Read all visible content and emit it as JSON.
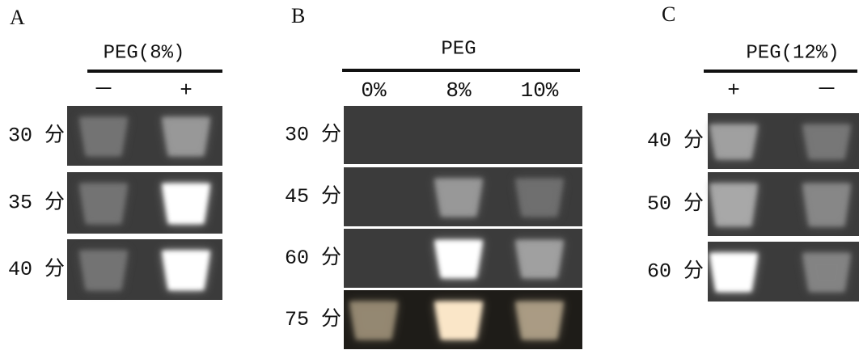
{
  "panels": [
    {
      "label": "A",
      "header": "PEG(8%)",
      "columns": [
        "－",
        "+"
      ],
      "rows": [
        "30 分",
        "35 分",
        "40 分"
      ]
    },
    {
      "label": "B",
      "header": "PEG",
      "columns": [
        "0%",
        "8%",
        "10%"
      ],
      "rows": [
        "30 分",
        "45 分",
        "60 分",
        "75 分"
      ]
    },
    {
      "label": "C",
      "header": "PEG(12%)",
      "columns": [
        "+",
        "－"
      ],
      "rows": [
        "40 分",
        "50 分",
        "60 分"
      ]
    }
  ]
}
